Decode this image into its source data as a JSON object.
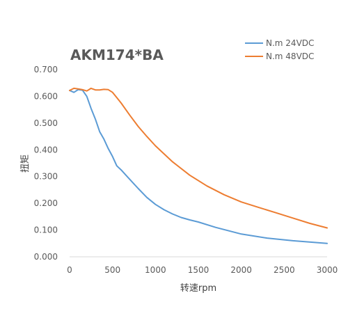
{
  "chart_data": {
    "type": "line",
    "title": "AKM174*BA",
    "xlabel": "转速rpm",
    "ylabel": "扭矩",
    "xlim": [
      0,
      3000
    ],
    "ylim": [
      0,
      0.7
    ],
    "x_ticks": [
      "0",
      "500",
      "1000",
      "1500",
      "2000",
      "2500",
      "3000"
    ],
    "y_ticks": [
      "0.000",
      "0.100",
      "0.200",
      "0.300",
      "0.400",
      "0.500",
      "0.600",
      "0.700"
    ],
    "grid": false,
    "legend_position": "top-right",
    "series": [
      {
        "name": "N.m   24VDC",
        "color": "#5b9bd5",
        "x": [
          0,
          50,
          100,
          150,
          200,
          250,
          300,
          350,
          400,
          450,
          500,
          550,
          600,
          700,
          800,
          900,
          1000,
          1100,
          1200,
          1300,
          1400,
          1500,
          1700,
          2000,
          2300,
          2600,
          3000
        ],
        "y": [
          0.622,
          0.615,
          0.625,
          0.623,
          0.6,
          0.555,
          0.515,
          0.468,
          0.44,
          0.405,
          0.375,
          0.34,
          0.325,
          0.29,
          0.255,
          0.222,
          0.196,
          0.176,
          0.16,
          0.147,
          0.138,
          0.13,
          0.11,
          0.085,
          0.07,
          0.06,
          0.05
        ]
      },
      {
        "name": "N.m   48VDC",
        "color": "#ed7d31",
        "x": [
          0,
          50,
          100,
          150,
          200,
          250,
          300,
          350,
          400,
          450,
          500,
          550,
          600,
          700,
          800,
          900,
          1000,
          1200,
          1400,
          1600,
          1800,
          2000,
          2200,
          2400,
          2600,
          2800,
          3000
        ],
        "y": [
          0.622,
          0.63,
          0.628,
          0.625,
          0.62,
          0.63,
          0.624,
          0.624,
          0.626,
          0.625,
          0.615,
          0.595,
          0.575,
          0.53,
          0.487,
          0.45,
          0.415,
          0.355,
          0.305,
          0.265,
          0.232,
          0.205,
          0.185,
          0.165,
          0.145,
          0.125,
          0.108
        ]
      }
    ]
  }
}
